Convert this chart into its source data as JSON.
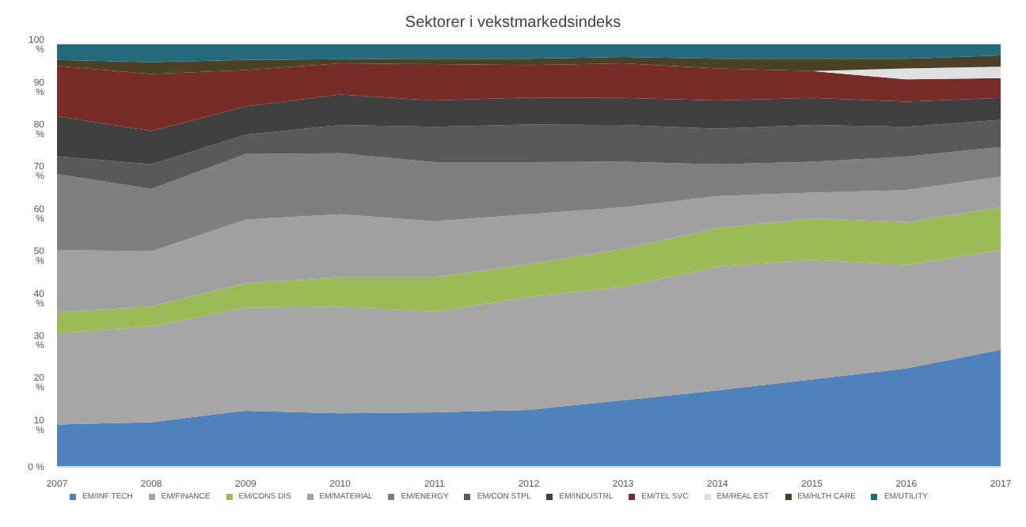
{
  "chart_data": {
    "type": "area",
    "stacked": true,
    "title": "Sektorer i vekstmarkedsindeks",
    "categories": [
      "2007",
      "2008",
      "2009",
      "2010",
      "2011",
      "2012",
      "2013",
      "2014",
      "2015",
      "2016",
      "2017"
    ],
    "ylim": [
      0,
      100
    ],
    "yticks": [
      {
        "value": 0,
        "label": "0 %"
      },
      {
        "value": 10,
        "label": "10 %"
      },
      {
        "value": 20,
        "label": "20 %"
      },
      {
        "value": 30,
        "label": "30 %"
      },
      {
        "value": 40,
        "label": "40 %"
      },
      {
        "value": 50,
        "label": "50 %"
      },
      {
        "value": 60,
        "label": "60 %"
      },
      {
        "value": 70,
        "label": "70 %"
      },
      {
        "value": 80,
        "label": "80 %"
      },
      {
        "value": 90,
        "label": "90 %"
      },
      {
        "value": 100,
        "label": "100 %"
      }
    ],
    "grid": false,
    "legend": "bottom",
    "series": [
      {
        "name": "EM/INF TECH",
        "color": "#4f81bd",
        "values": [
          10,
          10.6,
          13.3,
          12.7,
          12.9,
          13.5,
          15.8,
          18.1,
          20.7,
          23.3,
          27.7
        ]
      },
      {
        "name": "EM/FINANCE",
        "color": "#a6a6a6",
        "values": [
          21.6,
          22.7,
          24.4,
          25.2,
          23.8,
          26.7,
          26.8,
          29.3,
          28.3,
          24.5,
          23.6
        ]
      },
      {
        "name": "EM/CONS DIS",
        "color": "#9bbb59",
        "values": [
          4.9,
          4.7,
          5.8,
          7,
          8.2,
          7.8,
          9,
          9.1,
          9.8,
          10.1,
          10.1
        ]
      },
      {
        "name": "EM/MATERIAL",
        "color": "#a0a0a0",
        "values": [
          14.8,
          13,
          15,
          14.9,
          13.2,
          11.8,
          9.8,
          7.6,
          6.1,
          7.6,
          7.3
        ]
      },
      {
        "name": "EM/ENERGY",
        "color": "#7f7f7f",
        "values": [
          18,
          14.8,
          15.5,
          14.4,
          14,
          12.3,
          10.8,
          7.5,
          7.3,
          7.9,
          7
        ]
      },
      {
        "name": "EM/CON STPL",
        "color": "#595959",
        "values": [
          4.2,
          5.8,
          4.6,
          6.7,
          8.4,
          8.9,
          8.7,
          8.4,
          8.7,
          7.1,
          6.4
        ]
      },
      {
        "name": "EM/INDUSTRL",
        "color": "#404040",
        "values": [
          9.5,
          7.9,
          6.7,
          7.2,
          6.2,
          6.4,
          6.4,
          6.7,
          6.4,
          5.9,
          5.2
        ]
      },
      {
        "name": "EM/TEL SVC",
        "color": "#772c2a",
        "values": [
          11.9,
          13.5,
          8.6,
          7.4,
          8.6,
          7.7,
          8.2,
          7.6,
          6.4,
          5.3,
          4.7
        ]
      },
      {
        "name": "EM/REAL EST",
        "color": "#e0e0e0",
        "values": [
          0,
          0,
          0,
          0,
          0,
          0,
          0,
          0,
          0,
          2.6,
          2.7
        ]
      },
      {
        "name": "EM/HLTH CARE",
        "color": "#4a4126",
        "values": [
          1.4,
          2.8,
          2.4,
          1,
          1.3,
          1.5,
          1.5,
          2.3,
          2.9,
          2.3,
          2.7
        ]
      },
      {
        "name": "EM/UTILITY",
        "color": "#256a7a",
        "values": [
          3.7,
          4.2,
          3.7,
          3.5,
          3.4,
          3.4,
          3,
          3.4,
          3.4,
          3.4,
          2.6
        ]
      }
    ]
  }
}
